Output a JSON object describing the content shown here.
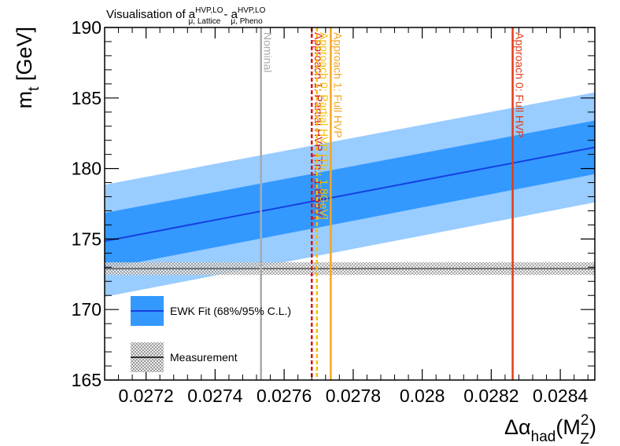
{
  "chart_data": {
    "type": "line",
    "title": {
      "prefix": "Visualisation of a",
      "sup1": "HVP,LO",
      "sub1": "μ, Lattice",
      "minus": " - a",
      "sup2": "HVP,LO",
      "sub2": "μ, Pheno"
    },
    "xlabel": {
      "main": "Δα",
      "sub": "had",
      "open": "(M",
      "sup": "2",
      "sub2": "Z",
      "close": ")"
    },
    "ylabel": {
      "main": "m",
      "sub": "t",
      "unit": " [GeV]"
    },
    "xlim": [
      0.02708,
      0.0285
    ],
    "ylim": [
      165,
      190
    ],
    "x_ticks": [
      {
        "value": 0.0272,
        "label": "0.0272"
      },
      {
        "value": 0.0274,
        "label": "0.0274"
      },
      {
        "value": 0.0276,
        "label": "0.0276"
      },
      {
        "value": 0.0278,
        "label": "0.0278"
      },
      {
        "value": 0.028,
        "label": "0.028"
      },
      {
        "value": 0.0282,
        "label": "0.0282"
      },
      {
        "value": 0.0284,
        "label": "0.0284"
      }
    ],
    "y_ticks": [
      {
        "value": 165,
        "label": "165"
      },
      {
        "value": 170,
        "label": "170"
      },
      {
        "value": 175,
        "label": "175"
      },
      {
        "value": 180,
        "label": "180"
      },
      {
        "value": 185,
        "label": "185"
      },
      {
        "value": 190,
        "label": "190"
      }
    ],
    "fit": {
      "name": "EWK Fit (68%/95% C.L.)",
      "x": [
        0.02708,
        0.0285
      ],
      "central": [
        174.85,
        181.5
      ],
      "band68_lo": [
        172.9,
        179.6
      ],
      "band68_hi": [
        176.85,
        183.4
      ],
      "band95_lo": [
        170.9,
        177.6
      ],
      "band95_hi": [
        178.85,
        185.4
      ],
      "color_line": "#1540e0",
      "color_68": "#3399ff",
      "color_95": "#99ccff"
    },
    "measurement": {
      "name": "Measurement",
      "value": 172.9,
      "band_lo": 172.45,
      "band_hi": 173.35,
      "color": "#555555"
    },
    "vertical_lines": [
      {
        "label": "Nominal",
        "x": 0.027533,
        "color": "#aaaaaa",
        "style": "solid"
      },
      {
        "label": "Approach 1: Partial HVP [Th., 1.8GeV]",
        "x": 0.02768,
        "color": "#dd1111",
        "style": "dashed"
      },
      {
        "label": "Approach 0: Partial HVP [Th., 1.8GeV]",
        "x": 0.027695,
        "color": "#f5c100",
        "style": "dashed"
      },
      {
        "label": "Approach 1: Full HVP",
        "x": 0.027735,
        "color": "#f5a623",
        "style": "solid"
      },
      {
        "label": "Approach 0: Full HVP",
        "x": 0.028262,
        "color": "#e03c1a",
        "style": "solid"
      }
    ]
  }
}
